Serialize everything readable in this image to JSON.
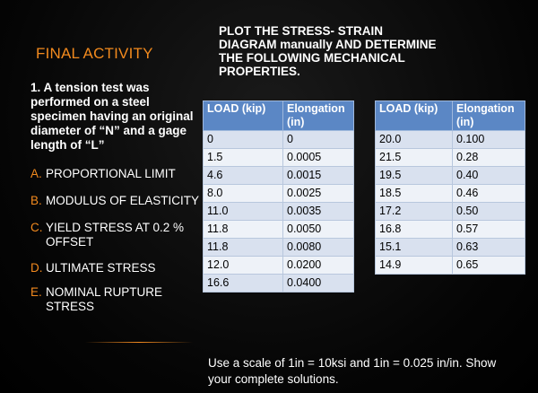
{
  "slide": {
    "title": "FINAL ACTIVITY",
    "task": "1. A tension test was performed on a steel specimen having an original diameter of “N” and a gage length of “L”",
    "properties": [
      {
        "letter": "A.",
        "label": "PROPORTIONAL LIMIT"
      },
      {
        "letter": "B.",
        "label": "MODULUS OF ELASTICITY"
      },
      {
        "letter": "C.",
        "label": "YIELD STRESS AT 0.2 % OFFSET"
      },
      {
        "letter": "D.",
        "label": "ULTIMATE STRESS"
      },
      {
        "letter": "E.",
        "label": "NOMINAL RUPTURE STRESS"
      }
    ],
    "heading": "PLOT THE STRESS- STRAIN DIAGRAM manually AND DETERMINE THE FOLLOWING MECHANICAL PROPERTIES.",
    "table_headers": {
      "load": "LOAD (kip)",
      "elongation": "Elongation (in)"
    },
    "table_left": [
      [
        "0",
        "0"
      ],
      [
        "1.5",
        "0.0005"
      ],
      [
        "4.6",
        "0.0015"
      ],
      [
        "8.0",
        "0.0025"
      ],
      [
        "11.0",
        "0.0035"
      ],
      [
        "11.8",
        "0.0050"
      ],
      [
        "11.8",
        "0.0080"
      ],
      [
        "12.0",
        "0.0200"
      ],
      [
        "16.6",
        "0.0400"
      ]
    ],
    "table_right": [
      [
        "20.0",
        "0.100"
      ],
      [
        "21.5",
        "0.28"
      ],
      [
        "19.5",
        "0.40"
      ],
      [
        "18.5",
        "0.46"
      ],
      [
        "17.2",
        "0.50"
      ],
      [
        "16.8",
        "0.57"
      ],
      [
        "15.1",
        "0.63"
      ],
      [
        "14.9",
        "0.65"
      ]
    ],
    "note": "Use a scale of 1in = 10ksi and 1in = 0.025 in/in. Show your complete solutions."
  },
  "colors": {
    "accent": "#f28a1e",
    "table_header": "#5b87c5",
    "row_odd": "#d9e1ef",
    "row_even": "#eef2f8"
  }
}
